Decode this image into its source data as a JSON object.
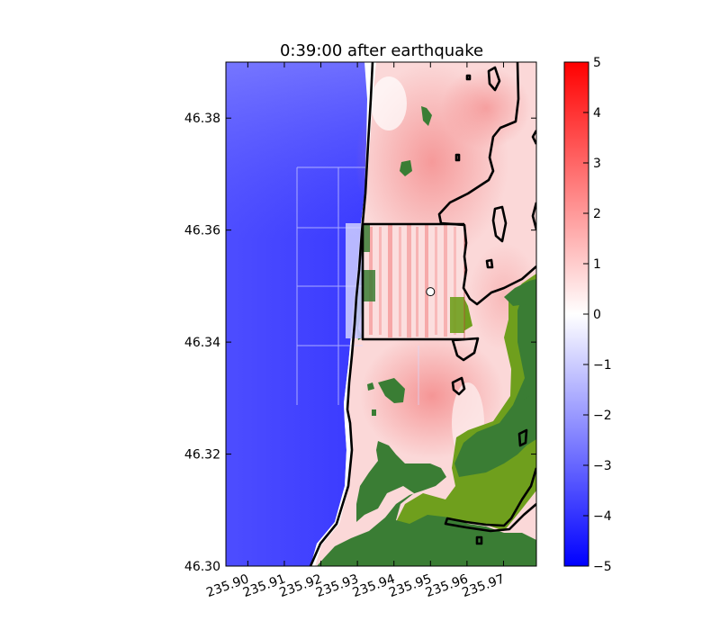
{
  "chart_data": [
    {
      "type": "heatmap",
      "title": "0:39:00 after earthquake",
      "xlabel": "",
      "ylabel": "",
      "xlim": [
        235.894,
        235.979
      ],
      "ylim": [
        46.3,
        46.39
      ],
      "x_ticks": [
        235.9,
        235.91,
        235.92,
        235.93,
        235.94,
        235.95,
        235.96,
        235.97
      ],
      "x_tick_labels": [
        "235.90",
        "235.91",
        "235.92",
        "235.93",
        "235.94",
        "235.95",
        "235.96",
        "235.97"
      ],
      "y_ticks": [
        46.3,
        46.32,
        46.34,
        46.36,
        46.38
      ],
      "y_tick_labels": [
        "46.30",
        "46.32",
        "46.34",
        "46.36",
        "46.38"
      ],
      "colormap": "bwr",
      "land_color": "#3a7d34",
      "dry_land_color": "#6f9f1d",
      "shoreline_color": "#000000",
      "marker": {
        "x": 235.95,
        "y": 46.349
      },
      "inset_region": {
        "x": [
          235.9325,
          235.9515
        ],
        "y": [
          46.341,
          46.361
        ]
      }
    },
    {
      "type": "colorbar",
      "vmin": -5,
      "vmax": 5,
      "ticks": [
        5,
        4,
        3,
        2,
        1,
        0,
        -1,
        -2,
        -3,
        -4,
        -5
      ],
      "tick_labels": [
        "5",
        "4",
        "3",
        "2",
        "1",
        "0",
        "−1",
        "−2",
        "−3",
        "−4",
        "−5"
      ]
    }
  ]
}
